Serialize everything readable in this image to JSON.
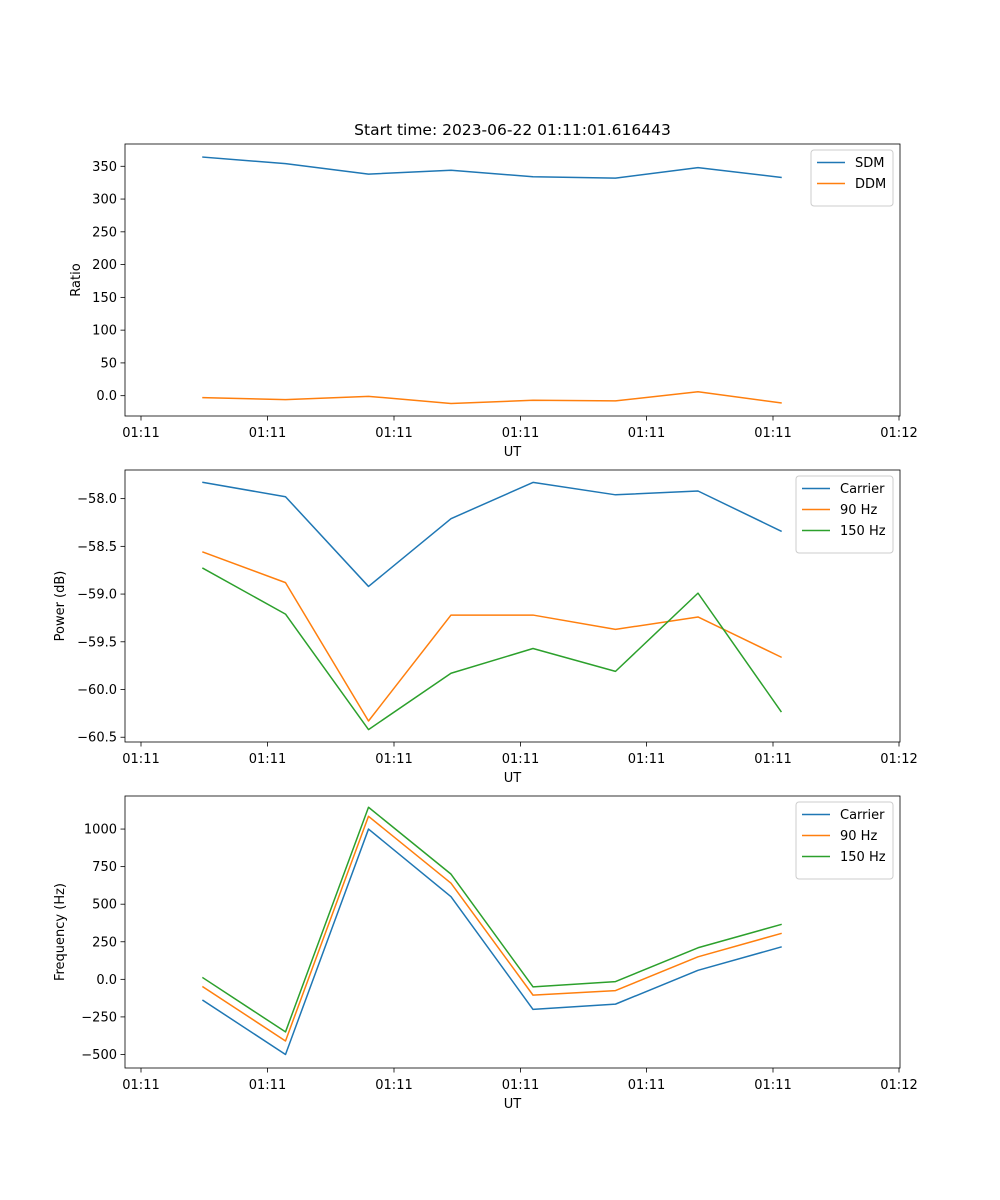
{
  "figure": {
    "title": "Start time: 2023-06-22 01:11:01.616443"
  },
  "chart_data": [
    {
      "type": "line",
      "title": "Start time: 2023-06-22 01:11:01.616443",
      "xlabel": "UT",
      "ylabel": "Ratio",
      "x_tick_labels": [
        "01:11",
        "01:11",
        "01:11",
        "01:11",
        "01:11",
        "01:11",
        "01:12"
      ],
      "x_index": [
        0,
        1,
        2,
        3,
        4,
        5,
        6,
        7
      ],
      "y_ticks": [
        0,
        50,
        100,
        150,
        200,
        250,
        300,
        350
      ],
      "ylim": [
        -31,
        384
      ],
      "legend_position": "upper right",
      "grid": false,
      "series": [
        {
          "name": "SDM",
          "color": "#1f77b4",
          "values": [
            364,
            354,
            338,
            344,
            334,
            332,
            348,
            333
          ]
        },
        {
          "name": "DDM",
          "color": "#ff7f0e",
          "values": [
            -3,
            -6,
            -1,
            -12,
            -7,
            -8,
            6,
            -11
          ]
        }
      ]
    },
    {
      "type": "line",
      "xlabel": "UT",
      "ylabel": "Power (dB)",
      "x_tick_labels": [
        "01:11",
        "01:11",
        "01:11",
        "01:11",
        "01:11",
        "01:11",
        "01:12"
      ],
      "x_index": [
        0,
        1,
        2,
        3,
        4,
        5,
        6,
        7
      ],
      "y_ticks": [
        -58.0,
        -58.5,
        -59.0,
        -59.5,
        -60.0,
        -60.5
      ],
      "ylim": [
        -60.55,
        -57.7
      ],
      "legend_position": "upper right",
      "grid": false,
      "series": [
        {
          "name": "Carrier",
          "color": "#1f77b4",
          "values": [
            -57.83,
            -57.98,
            -58.92,
            -58.21,
            -57.83,
            -57.96,
            -57.92,
            -58.34
          ]
        },
        {
          "name": "90 Hz",
          "color": "#ff7f0e",
          "values": [
            -58.56,
            -58.88,
            -60.33,
            -59.22,
            -59.22,
            -59.37,
            -59.24,
            -59.66
          ]
        },
        {
          "name": "150 Hz",
          "color": "#2ca02c",
          "values": [
            -58.73,
            -59.21,
            -60.42,
            -59.83,
            -59.57,
            -59.81,
            -58.99,
            -60.23
          ]
        }
      ]
    },
    {
      "type": "line",
      "xlabel": "UT",
      "ylabel": "Frequency (Hz)",
      "x_tick_labels": [
        "01:11",
        "01:11",
        "01:11",
        "01:11",
        "01:11",
        "01:11",
        "01:12"
      ],
      "x_index": [
        0,
        1,
        2,
        3,
        4,
        5,
        6,
        7
      ],
      "y_ticks": [
        1000,
        750,
        500,
        250,
        0,
        -250,
        -500
      ],
      "ylim": [
        -590,
        1220
      ],
      "legend_position": "upper right",
      "grid": false,
      "series": [
        {
          "name": "Carrier",
          "color": "#1f77b4",
          "values": [
            -140,
            -500,
            1000,
            550,
            -200,
            -165,
            60,
            215
          ]
        },
        {
          "name": "90 Hz",
          "color": "#ff7f0e",
          "values": [
            -50,
            -410,
            1085,
            640,
            -105,
            -75,
            150,
            305
          ]
        },
        {
          "name": "150 Hz",
          "color": "#2ca02c",
          "values": [
            10,
            -350,
            1145,
            700,
            -50,
            -15,
            210,
            365
          ]
        }
      ]
    }
  ]
}
